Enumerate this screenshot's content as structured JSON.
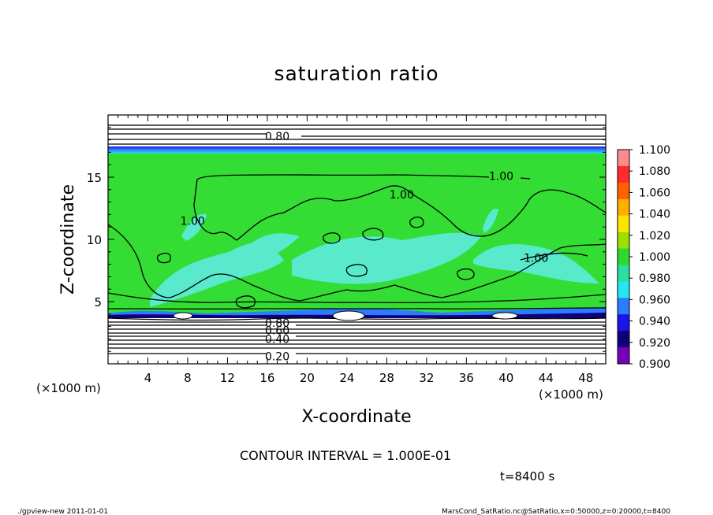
{
  "chart_data": {
    "type": "heatmap",
    "title": "saturation ratio",
    "xlabel": "X-coordinate",
    "ylabel": "Z-coordinate",
    "x_unit": "(×1000 m)",
    "y_unit": "(×1000 m)",
    "xlim": [
      0,
      50
    ],
    "ylim": [
      0,
      20
    ],
    "x_ticks": [
      "4",
      "8",
      "12",
      "16",
      "20",
      "24",
      "28",
      "32",
      "36",
      "40",
      "44",
      "48"
    ],
    "y_ticks": [
      "5",
      "10",
      "15"
    ],
    "contour_interval_text": "CONTOUR INTERVAL = 1.000E-01",
    "time_text": "t=8400 s",
    "contour_labels": [
      {
        "text": "0.80",
        "x": 17.0,
        "z": 18.3
      },
      {
        "text": "1.00",
        "x": 39.5,
        "z": 15.1
      },
      {
        "text": "1.00",
        "x": 29.5,
        "z": 13.6
      },
      {
        "text": "1.00",
        "x": 8.5,
        "z": 11.5
      },
      {
        "text": "1.00",
        "x": 43.0,
        "z": 8.5
      },
      {
        "text": "0.80",
        "x": 17.0,
        "z": 3.3
      },
      {
        "text": "0.60",
        "x": 17.0,
        "z": 2.7
      },
      {
        "text": "0.40",
        "x": 17.0,
        "z": 2.0
      },
      {
        "text": "0.20",
        "x": 17.0,
        "z": 0.6
      }
    ],
    "colorbar": {
      "labels": [
        "1.100",
        "1.080",
        "1.060",
        "1.040",
        "1.020",
        "1.000",
        "0.980",
        "0.960",
        "0.940",
        "0.920",
        "0.900"
      ],
      "colors": [
        "#ff8c8c",
        "#ff2a2a",
        "#ff6000",
        "#ffb000",
        "#ffe400",
        "#9be000",
        "#2ed82e",
        "#2adfa0",
        "#24e8f0",
        "#2c7cff",
        "#1a14e6",
        "#10007a",
        "#7800b8"
      ]
    },
    "colors": {
      "field_green": "#33dd33",
      "field_top_blue": "#1e2ee8",
      "field_light_cyan": "#66eeff",
      "field_bottom_white": "#ffffff"
    }
  },
  "footer": {
    "left": "./gpview-new   2011-01-01",
    "right": "MarsCond_SatRatio.nc@SatRatio,x=0:50000,z=0:20000,t=8400"
  }
}
